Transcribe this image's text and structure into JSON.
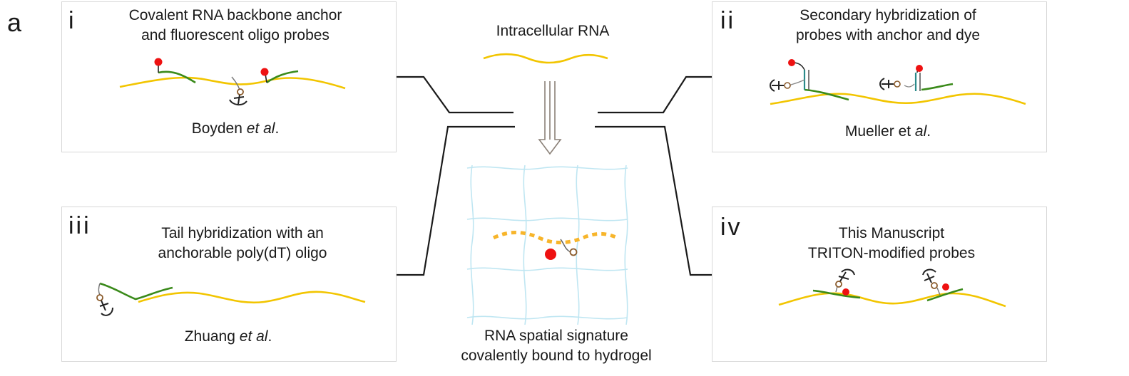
{
  "figure_letter": "a",
  "center": {
    "top_label": "Intracellular RNA",
    "bottom_label_line1": "RNA spatial signature",
    "bottom_label_line2": "covalently bound to hydrogel"
  },
  "panels": [
    {
      "id": "i",
      "roman": "i",
      "title_line1": "Covalent RNA backbone anchor",
      "title_line2": "and fluorescent oligo probes",
      "author": "Boyden",
      "author_suffix": "et al",
      "author_end": "."
    },
    {
      "id": "ii",
      "roman": "ii",
      "title_line1": "Secondary hybridization of",
      "title_line2": "probes with anchor and dye",
      "author": "Mueller et",
      "author_suffix": "al",
      "author_end": "."
    },
    {
      "id": "iii",
      "roman": "iii",
      "title_line1": "Tail hybridization with an",
      "title_line2": "anchorable poly(dT) oligo",
      "author": "Zhuang",
      "author_suffix": "et al",
      "author_end": "."
    },
    {
      "id": "iv",
      "roman": "iv",
      "title_line1": "This Manuscript",
      "title_line2": "TRITON-modified probes",
      "author": "",
      "author_suffix": "",
      "author_end": ""
    }
  ],
  "colors": {
    "rna": "#f2c500",
    "probe": "#3a8a1a",
    "dye": "#ee1111",
    "anchor": "#222222",
    "anchor_ring": "#8a5a2a",
    "hydrogel": "#bfe6f2",
    "panel_border": "#d7d7d7",
    "connector": "#1a1a1a"
  }
}
